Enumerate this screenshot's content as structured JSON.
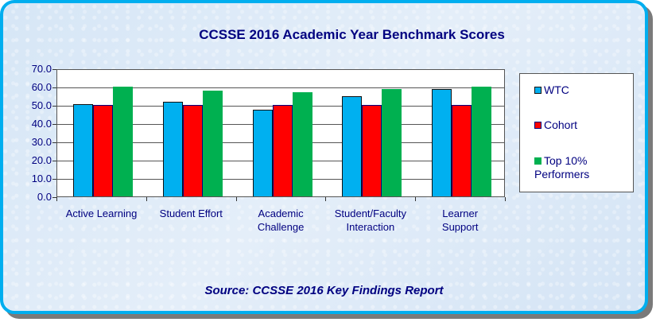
{
  "chart_data": {
    "type": "bar",
    "title": "CCSSE 2016 Academic Year Benchmark Scores",
    "xlabel": "",
    "ylabel": "",
    "ylim": [
      0,
      70
    ],
    "yticks": [
      "0.0",
      "10.0",
      "20.0",
      "30.0",
      "40.0",
      "50.0",
      "60.0",
      "70.0"
    ],
    "grid": true,
    "legend_position": "right",
    "categories": [
      "Active Learning",
      "Student Effort",
      "Academic Challenge",
      "Student/Faculty Interaction",
      "Learner Support"
    ],
    "category_label_lines": [
      [
        "Active Learning"
      ],
      [
        "Student Effort"
      ],
      [
        "Academic",
        "Challenge"
      ],
      [
        "Student/Faculty",
        "Interaction"
      ],
      [
        "Learner",
        "Support"
      ]
    ],
    "series": [
      {
        "name": "WTC",
        "color": "#00B0F0",
        "values": [
          50.3,
          51.7,
          47.4,
          54.8,
          58.7
        ]
      },
      {
        "name": "Cohort",
        "color": "#FF0000",
        "values": [
          50.0,
          50.0,
          50.0,
          50.0,
          50.0
        ]
      },
      {
        "name": "Top 10% Performers",
        "color": "#00B050",
        "values": [
          60.0,
          57.9,
          57.0,
          58.9,
          60.0
        ]
      }
    ],
    "annotations": [
      "Source: CCSSE 2016 Key Findings Report"
    ]
  },
  "header": {
    "title": "CCSSE 2016 Academic Year Benchmark Scores"
  },
  "legend": {
    "items": [
      {
        "label": "WTC"
      },
      {
        "label": "Cohort"
      },
      {
        "label": "Top 10%"
      },
      {
        "label": "Performers"
      }
    ]
  },
  "footer": {
    "source": "Source: CCSSE 2016 Key Findings Report"
  }
}
